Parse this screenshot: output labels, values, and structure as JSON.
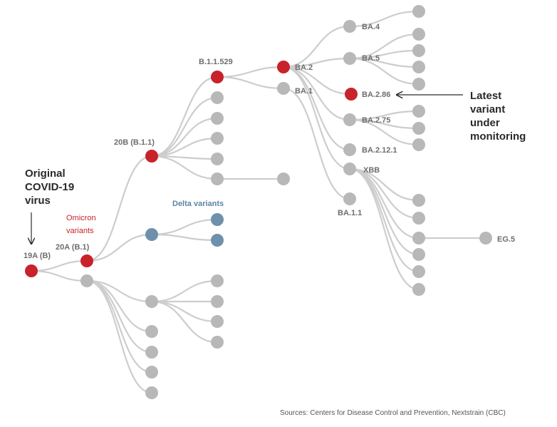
{
  "colors": {
    "red": "#c8222b",
    "gray": "#b8b8b8",
    "blue": "#6e90ab",
    "edge": "#cdcdcd"
  },
  "annotations": {
    "original": [
      "Original",
      "COVID-19",
      "virus"
    ],
    "latest": [
      "Latest",
      "variant",
      "under",
      "monitoring"
    ],
    "omicron": [
      "Omicron",
      "variants"
    ],
    "delta": "Delta variants",
    "source": "Sources: Centers for Disease Control and Prevention, Nextstrain (CBC)"
  },
  "variants": [
    {
      "name": "19A (B)",
      "color": "red"
    },
    {
      "name": "20A (B.1)",
      "color": "red"
    },
    {
      "name": "20B (B.1.1)",
      "color": "red"
    },
    {
      "name": "B.1.1.529",
      "color": "red"
    },
    {
      "name": "BA.2",
      "color": "red"
    },
    {
      "name": "BA.1",
      "color": "gray"
    },
    {
      "name": "BA.4",
      "color": "gray"
    },
    {
      "name": "BA.5",
      "color": "gray"
    },
    {
      "name": "BA.2.86",
      "color": "red"
    },
    {
      "name": "BA.2.75",
      "color": "gray"
    },
    {
      "name": "BA.2.12.1",
      "color": "gray"
    },
    {
      "name": "XBB",
      "color": "gray"
    },
    {
      "name": "BA.1.1",
      "color": "gray"
    },
    {
      "name": "EG.5",
      "color": "gray"
    }
  ]
}
